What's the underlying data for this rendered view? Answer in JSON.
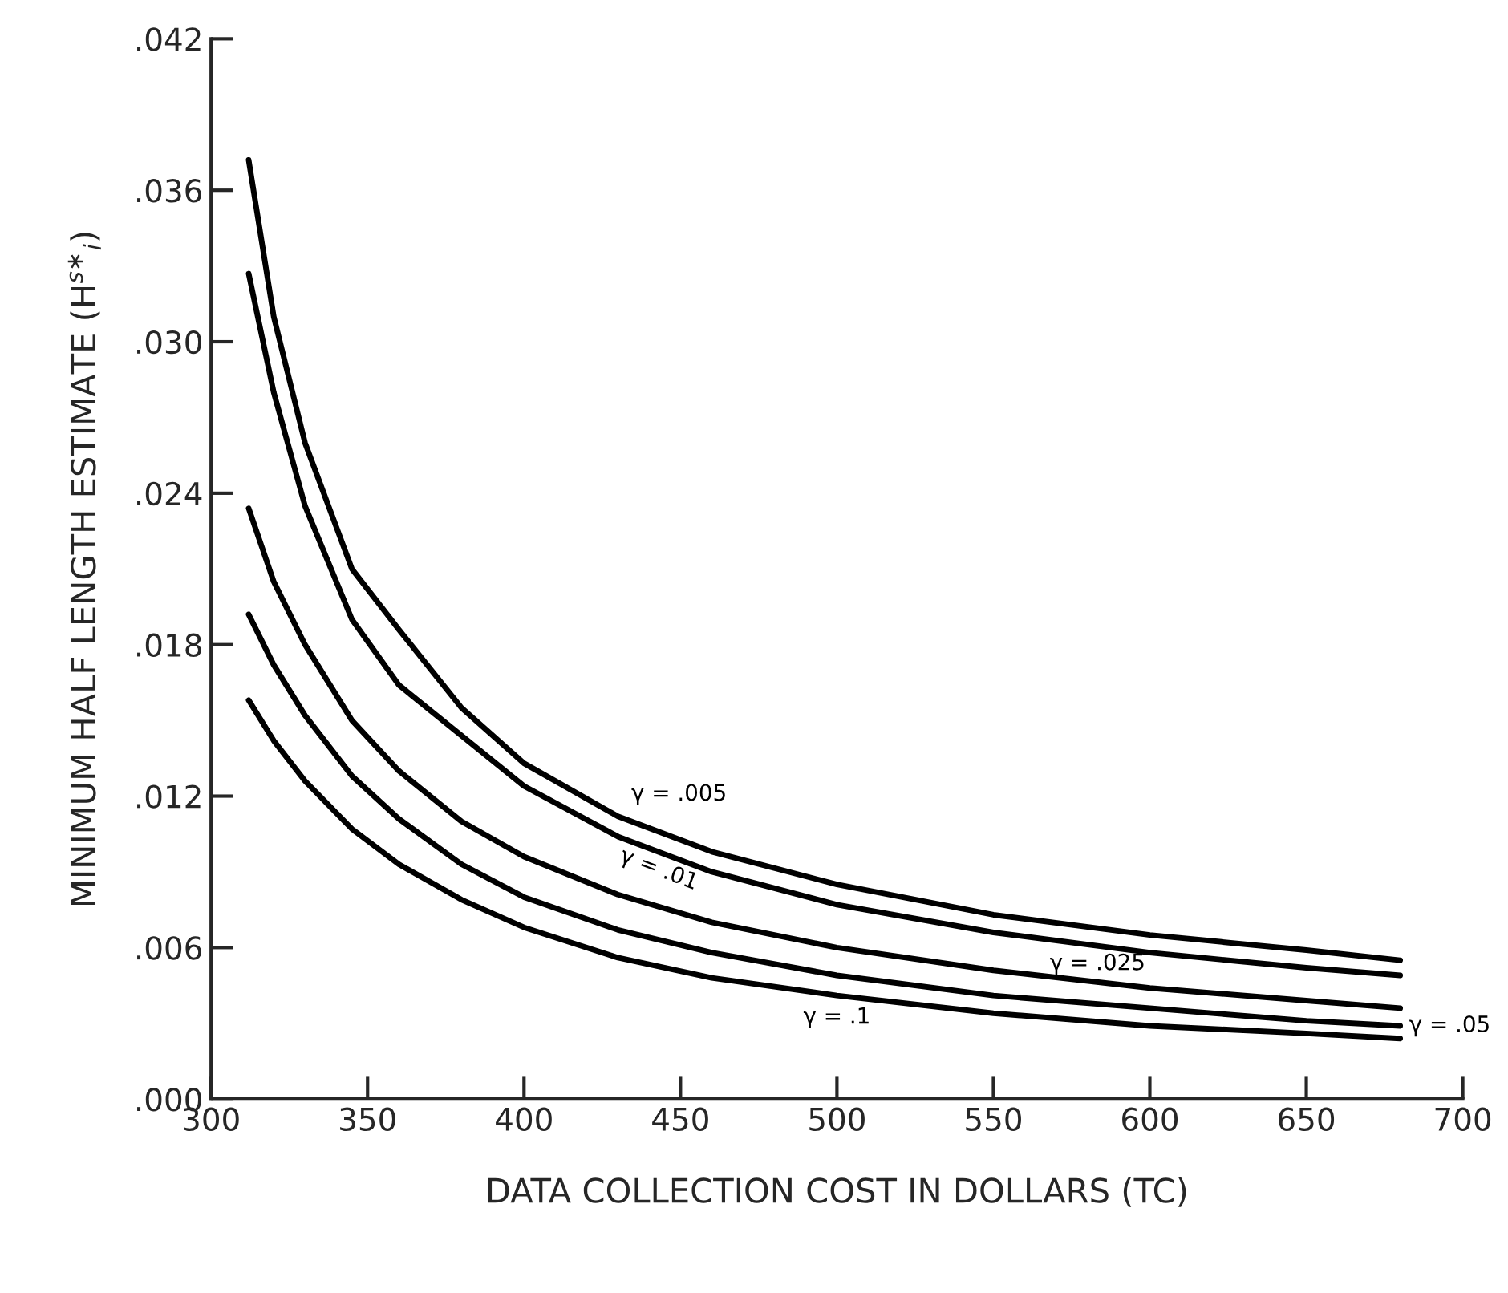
{
  "chart_data": {
    "type": "line",
    "xlabel": "DATA COLLECTION COST IN DOLLARS (TC)",
    "ylabel": "MINIMUM HALF LENGTH ESTIMATE (H$^{s∗}$$_{i}$)",
    "x": [
      312,
      320,
      330,
      345,
      360,
      380,
      400,
      430,
      460,
      500,
      550,
      600,
      650,
      680
    ],
    "series": [
      {
        "name": "γ = .005",
        "color": "#000000",
        "values": [
          0.0372,
          0.031,
          0.026,
          0.021,
          0.0186,
          0.0155,
          0.0133,
          0.0112,
          0.0098,
          0.0085,
          0.0073,
          0.0065,
          0.0059,
          0.0055
        ]
      },
      {
        "name": "γ = .01",
        "color": "#000000",
        "values": [
          0.0327,
          0.028,
          0.0235,
          0.019,
          0.0164,
          0.0144,
          0.0124,
          0.0104,
          0.009,
          0.0077,
          0.0066,
          0.0058,
          0.0052,
          0.0049
        ]
      },
      {
        "name": "γ = .025",
        "color": "#000000",
        "values": [
          0.0234,
          0.0205,
          0.018,
          0.015,
          0.013,
          0.011,
          0.0096,
          0.0081,
          0.007,
          0.006,
          0.0051,
          0.0044,
          0.0039,
          0.0036
        ]
      },
      {
        "name": "γ = .05",
        "color": "#000000",
        "values": [
          0.0192,
          0.0172,
          0.0152,
          0.0128,
          0.0111,
          0.0093,
          0.008,
          0.0067,
          0.0058,
          0.0049,
          0.0041,
          0.0036,
          0.0031,
          0.0029
        ]
      },
      {
        "name": "γ = .1",
        "color": "#000000",
        "values": [
          0.0158,
          0.0142,
          0.0126,
          0.0107,
          0.0093,
          0.0079,
          0.0068,
          0.0056,
          0.0048,
          0.0041,
          0.0034,
          0.0029,
          0.0026,
          0.0024
        ]
      }
    ],
    "xlim": [
      300,
      700
    ],
    "xticks": [
      300,
      350,
      400,
      450,
      500,
      550,
      600,
      650,
      700
    ],
    "ylim": [
      0,
      0.042
    ],
    "yticks": [
      {
        "value": 0,
        "label": ".000"
      },
      {
        "value": 0.006,
        "label": ".006"
      },
      {
        "value": 0.012,
        "label": ".012"
      },
      {
        "value": 0.018,
        "label": ".018"
      },
      {
        "value": 0.024,
        "label": ".024"
      },
      {
        "value": 0.03,
        "label": ".030"
      },
      {
        "value": 0.036,
        "label": ".036"
      },
      {
        "value": 0.042,
        "label": ".042"
      }
    ],
    "grid": false,
    "legend": false,
    "marker": "none",
    "line_style": "solid"
  }
}
